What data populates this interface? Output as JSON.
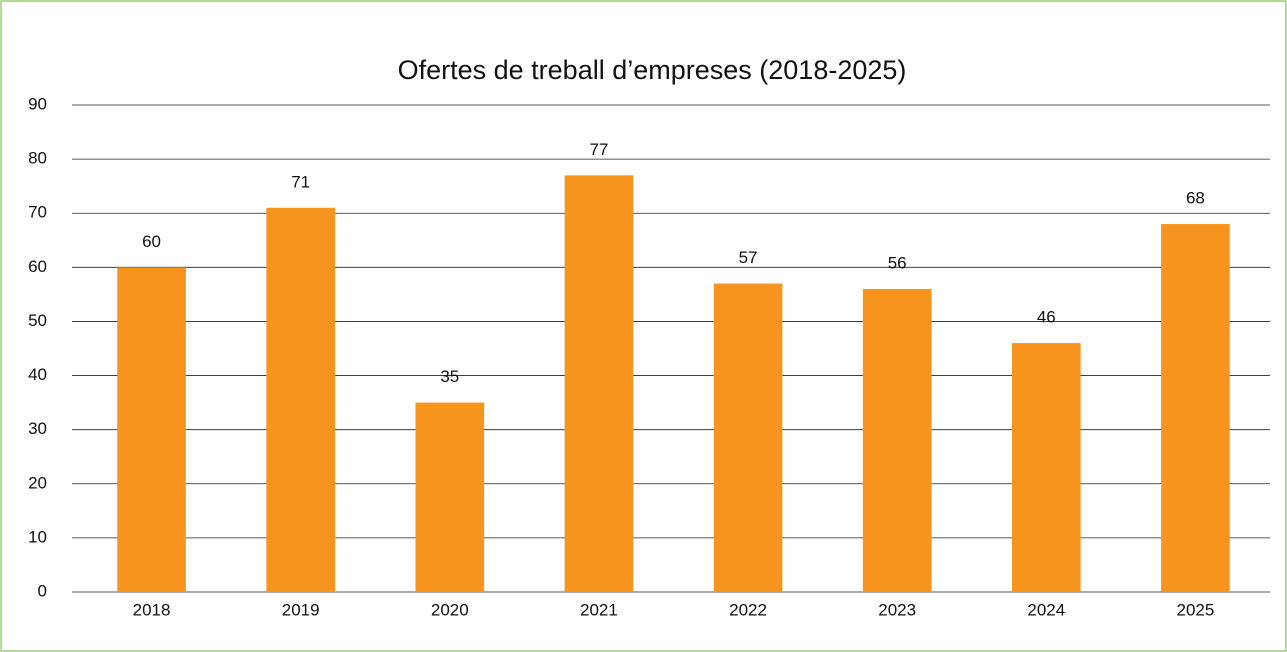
{
  "chart_data": {
    "type": "bar",
    "title": "Ofertes de treball d’empreses (2018-2025)",
    "categories": [
      "2018",
      "2019",
      "2020",
      "2021",
      "2022",
      "2023",
      "2024",
      "2025"
    ],
    "values": [
      60,
      71,
      35,
      77,
      57,
      56,
      46,
      68
    ],
    "color": "#f7941d",
    "ylim": [
      0,
      90
    ],
    "yticks": [
      0,
      10,
      20,
      30,
      40,
      50,
      60,
      70,
      80,
      90
    ],
    "grid": true
  }
}
